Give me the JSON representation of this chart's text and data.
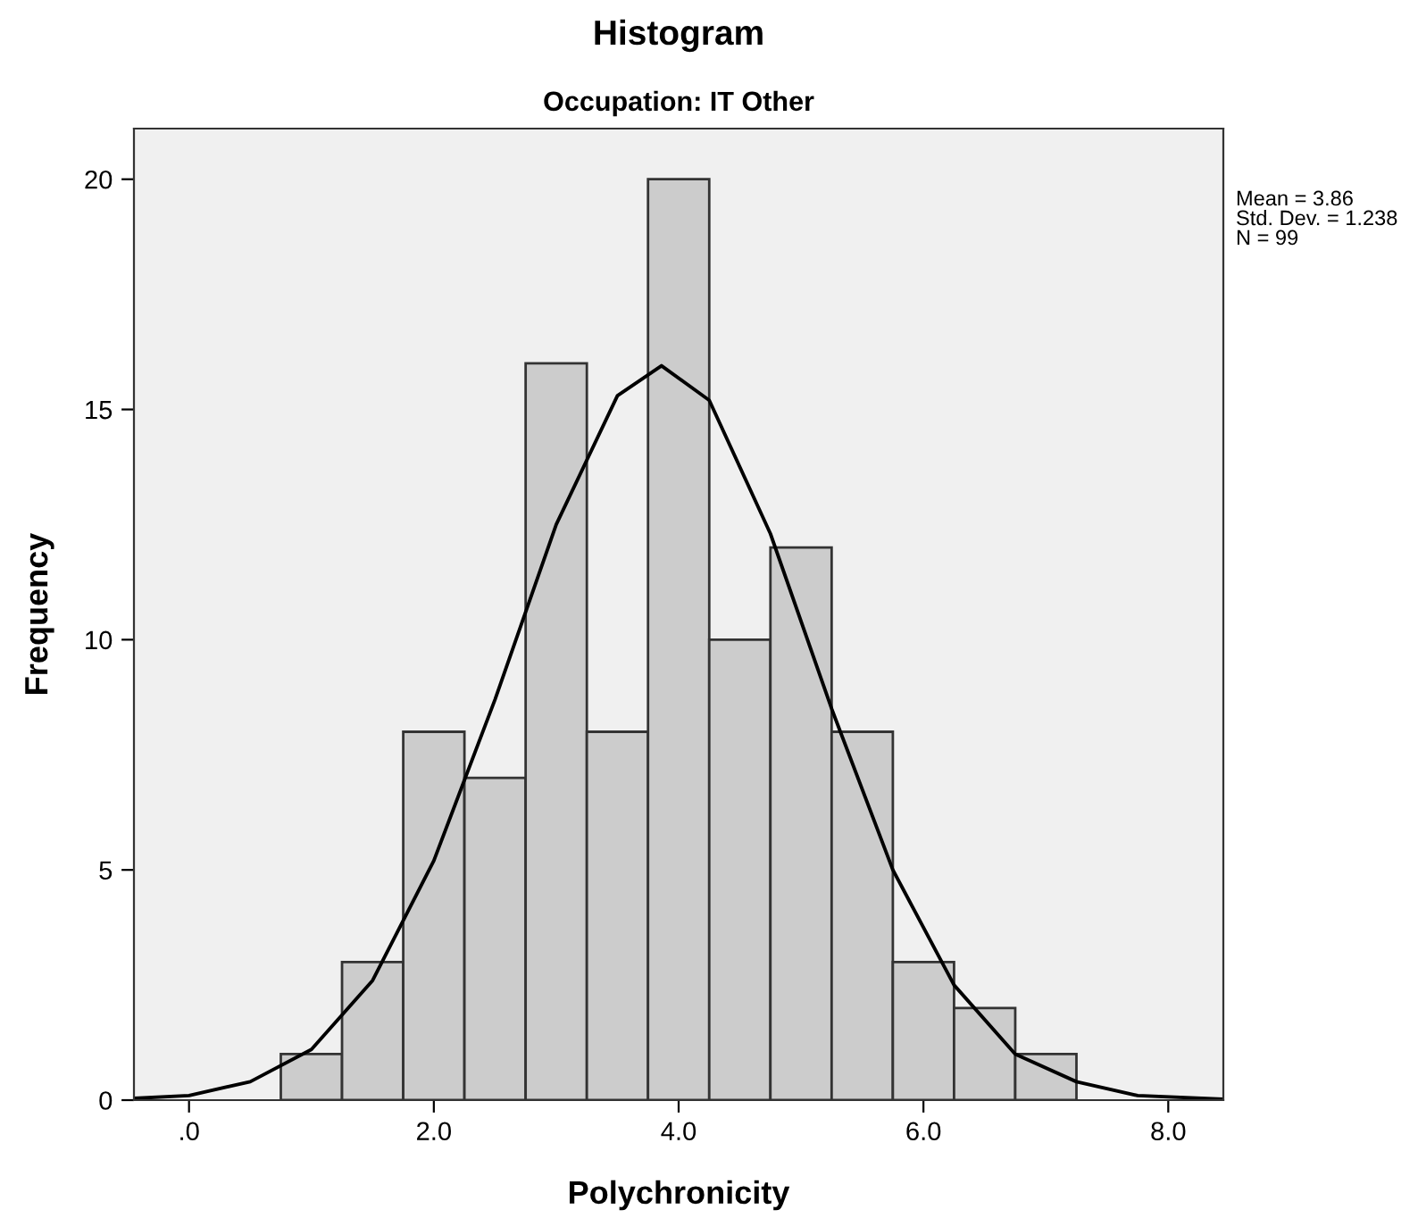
{
  "chart_data": {
    "type": "histogram",
    "title": "Histogram",
    "subtitle": "Occupation: IT Other",
    "xlabel": "Polychronicity",
    "ylabel": "Frequency",
    "bins": [
      0.75,
      1.25,
      1.75,
      2.25,
      2.75,
      3.25,
      3.75,
      4.25,
      4.75,
      5.25,
      5.75,
      6.25,
      6.75,
      7.25
    ],
    "values": [
      1,
      3,
      8,
      7,
      16,
      8,
      20,
      10,
      12,
      8,
      3,
      2,
      1
    ],
    "color": "#cccccc",
    "series": [
      {
        "type": "line",
        "color": "#000000",
        "x": [
          -0.45,
          0,
          0.5,
          1,
          1.5,
          2,
          2.5,
          3,
          3.5,
          3.86,
          4.25,
          4.75,
          5.25,
          5.75,
          6.25,
          6.75,
          7.25,
          7.75,
          8.45
        ],
        "values": [
          0.04,
          0.1,
          0.4,
          1.1,
          2.6,
          5.2,
          8.7,
          12.5,
          15.3,
          15.95,
          15.2,
          12.3,
          8.5,
          5.0,
          2.5,
          1.0,
          0.4,
          0.1,
          0.02
        ]
      }
    ],
    "xlim": [
      -0.45,
      8.45
    ],
    "ylim": [
      0,
      21.1
    ],
    "xticks": [
      {
        "value": 0,
        "label": ".0"
      },
      {
        "value": 2,
        "label": "2.0"
      },
      {
        "value": 4,
        "label": "4.0"
      },
      {
        "value": 6,
        "label": "6.0"
      },
      {
        "value": 8,
        "label": "8.0"
      }
    ],
    "yticks": [
      0,
      5,
      10,
      15,
      20
    ],
    "grid": false,
    "legend": false,
    "annotations": [
      "Mean = 3.86",
      "Std. Dev. = 1.238",
      "N = 99"
    ]
  }
}
